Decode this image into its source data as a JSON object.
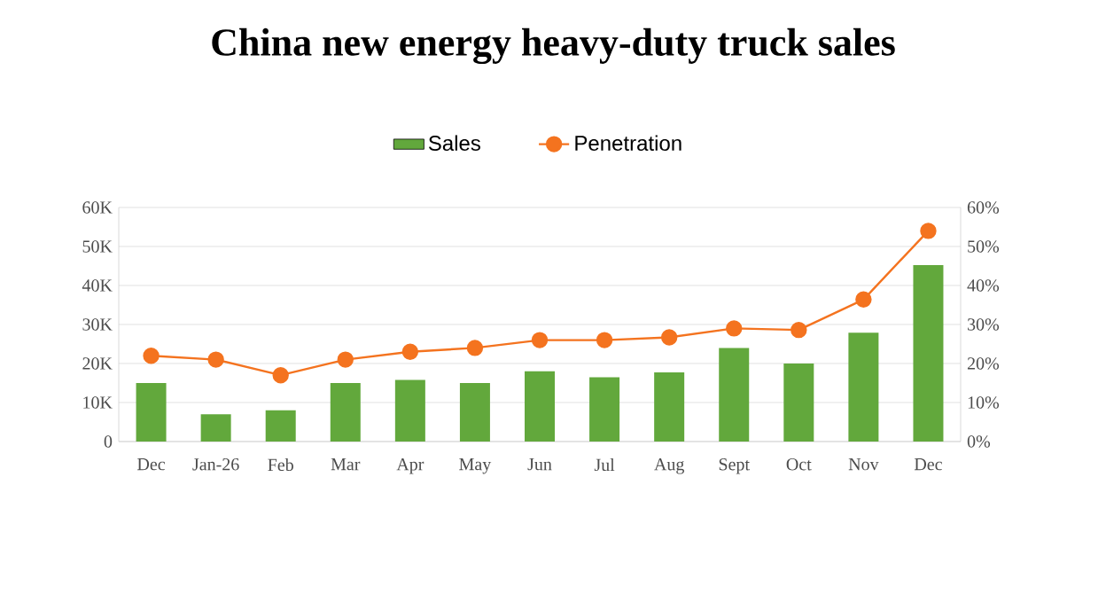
{
  "chart_data": {
    "type": "bar",
    "title": "China new energy heavy-duty truck sales",
    "categories": [
      "Dec",
      "Jan-26",
      "Feb",
      "Mar",
      "Apr",
      "May",
      "Jun",
      "Jul",
      "Aug",
      "Sept",
      "Oct",
      "Nov",
      "Dec"
    ],
    "series": [
      {
        "name": "Sales",
        "color": "#62a83c",
        "values": [
          15000,
          7000,
          8000,
          15000,
          15800,
          15000,
          18000,
          16500,
          17700,
          24000,
          20000,
          27900,
          45200
        ]
      },
      {
        "name": "Penetration",
        "type": "line",
        "axis": "y2",
        "color": "#f4731f",
        "values": [
          22,
          21,
          17,
          21,
          23,
          24,
          26,
          26,
          26.7,
          29,
          28.6,
          36.4,
          54
        ]
      }
    ],
    "ylim": [
      0,
      60000
    ],
    "yticks": [
      0,
      {
        "value": 10000,
        "label": "10K"
      },
      {
        "value": 20000,
        "label": "20K"
      },
      {
        "value": 30000,
        "label": "30K"
      },
      {
        "value": 40000,
        "label": "40K"
      },
      {
        "value": 50000,
        "label": "50K"
      },
      {
        "value": 60000,
        "label": "60K"
      }
    ],
    "y2lim": [
      0,
      60
    ],
    "y2ticks": [
      {
        "value": 0,
        "label": "0%"
      },
      {
        "value": 10,
        "label": "10%"
      },
      {
        "value": 20,
        "label": "20%"
      },
      {
        "value": 30,
        "label": "30%"
      },
      {
        "value": 40,
        "label": "40%"
      },
      {
        "value": 50,
        "label": "50%"
      },
      {
        "value": 60,
        "label": "60%"
      }
    ],
    "grid": "y",
    "legend": "top",
    "marker": "circle"
  }
}
